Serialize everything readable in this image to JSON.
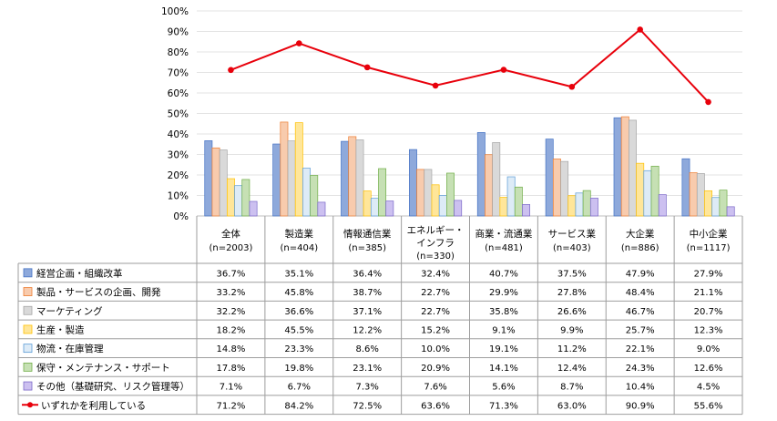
{
  "chart_data": {
    "type": "bar",
    "ylim": [
      0,
      100
    ],
    "y_ticks": [
      "0%",
      "10%",
      "20%",
      "30%",
      "40%",
      "50%",
      "60%",
      "70%",
      "80%",
      "90%",
      "100%"
    ],
    "grid": true,
    "legend_placement": "left, in data table",
    "categories": [
      {
        "name": "全体",
        "n": "(n=2003)"
      },
      {
        "name": "製造業",
        "n": "(n=404)"
      },
      {
        "name": "情報通信業",
        "n": "(n=385)"
      },
      {
        "name": "エネルギー・インフラ",
        "n": "(n=330)"
      },
      {
        "name": "商業・流通業",
        "n": "(n=481)"
      },
      {
        "name": "サービス業",
        "n": "(n=403)"
      },
      {
        "name": "大企業",
        "n": "(n=886)"
      },
      {
        "name": "中小企業",
        "n": "(n=1117)"
      }
    ],
    "series": [
      {
        "name": "経営企画・組織改革",
        "type": "bar",
        "color": "#8EA9DB",
        "stroke": "#4472C4",
        "values": [
          36.7,
          35.1,
          36.4,
          32.4,
          40.7,
          37.5,
          47.9,
          27.9
        ],
        "labels": [
          "36.7%",
          "35.1%",
          "36.4%",
          "32.4%",
          "40.7%",
          "37.5%",
          "47.9%",
          "27.9%"
        ]
      },
      {
        "name": "製品・サービスの企画、開発",
        "type": "bar",
        "color": "#F8CBAD",
        "stroke": "#ED7D31",
        "values": [
          33.2,
          45.8,
          38.7,
          22.7,
          29.9,
          27.8,
          48.4,
          21.1
        ],
        "labels": [
          "33.2%",
          "45.8%",
          "38.7%",
          "22.7%",
          "29.9%",
          "27.8%",
          "48.4%",
          "21.1%"
        ]
      },
      {
        "name": "マーケティング",
        "type": "bar",
        "color": "#D9D9D9",
        "stroke": "#A5A5A5",
        "values": [
          32.2,
          36.6,
          37.1,
          22.7,
          35.8,
          26.6,
          46.7,
          20.7
        ],
        "labels": [
          "32.2%",
          "36.6%",
          "37.1%",
          "22.7%",
          "35.8%",
          "26.6%",
          "46.7%",
          "20.7%"
        ]
      },
      {
        "name": "生産・製造",
        "type": "bar",
        "color": "#FFE699",
        "stroke": "#FFC000",
        "values": [
          18.2,
          45.5,
          12.2,
          15.2,
          9.1,
          9.9,
          25.7,
          12.3
        ],
        "labels": [
          "18.2%",
          "45.5%",
          "12.2%",
          "15.2%",
          "9.1%",
          "9.9%",
          "25.7%",
          "12.3%"
        ]
      },
      {
        "name": "物流・在庫管理",
        "type": "bar",
        "color": "#DDEBF7",
        "stroke": "#5B9BD5",
        "values": [
          14.8,
          23.3,
          8.6,
          10.0,
          19.1,
          11.2,
          22.1,
          9.0
        ],
        "labels": [
          "14.8%",
          "23.3%",
          "8.6%",
          "10.0%",
          "19.1%",
          "11.2%",
          "22.1%",
          "9.0%"
        ]
      },
      {
        "name": "保守・メンテナンス・サポート",
        "type": "bar",
        "color": "#C6E0B4",
        "stroke": "#70AD47",
        "values": [
          17.8,
          19.8,
          23.1,
          20.9,
          14.1,
          12.4,
          24.3,
          12.6
        ],
        "labels": [
          "17.8%",
          "19.8%",
          "23.1%",
          "20.9%",
          "14.1%",
          "12.4%",
          "24.3%",
          "12.6%"
        ]
      },
      {
        "name": "その他（基礎研究、リスク管理等）",
        "type": "bar",
        "color": "#CCC0F0",
        "stroke": "#7B68C8",
        "values": [
          7.1,
          6.7,
          7.3,
          7.6,
          5.6,
          8.7,
          10.4,
          4.5
        ],
        "labels": [
          "7.1%",
          "6.7%",
          "7.3%",
          "7.6%",
          "5.6%",
          "8.7%",
          "10.4%",
          "4.5%"
        ]
      },
      {
        "name": "いずれかを利用している",
        "type": "line",
        "color": "#E8000B",
        "values": [
          71.2,
          84.2,
          72.5,
          63.6,
          71.3,
          63.0,
          90.9,
          55.6
        ],
        "labels": [
          "71.2%",
          "84.2%",
          "72.5%",
          "63.6%",
          "71.3%",
          "63.0%",
          "90.9%",
          "55.6%"
        ]
      }
    ]
  }
}
